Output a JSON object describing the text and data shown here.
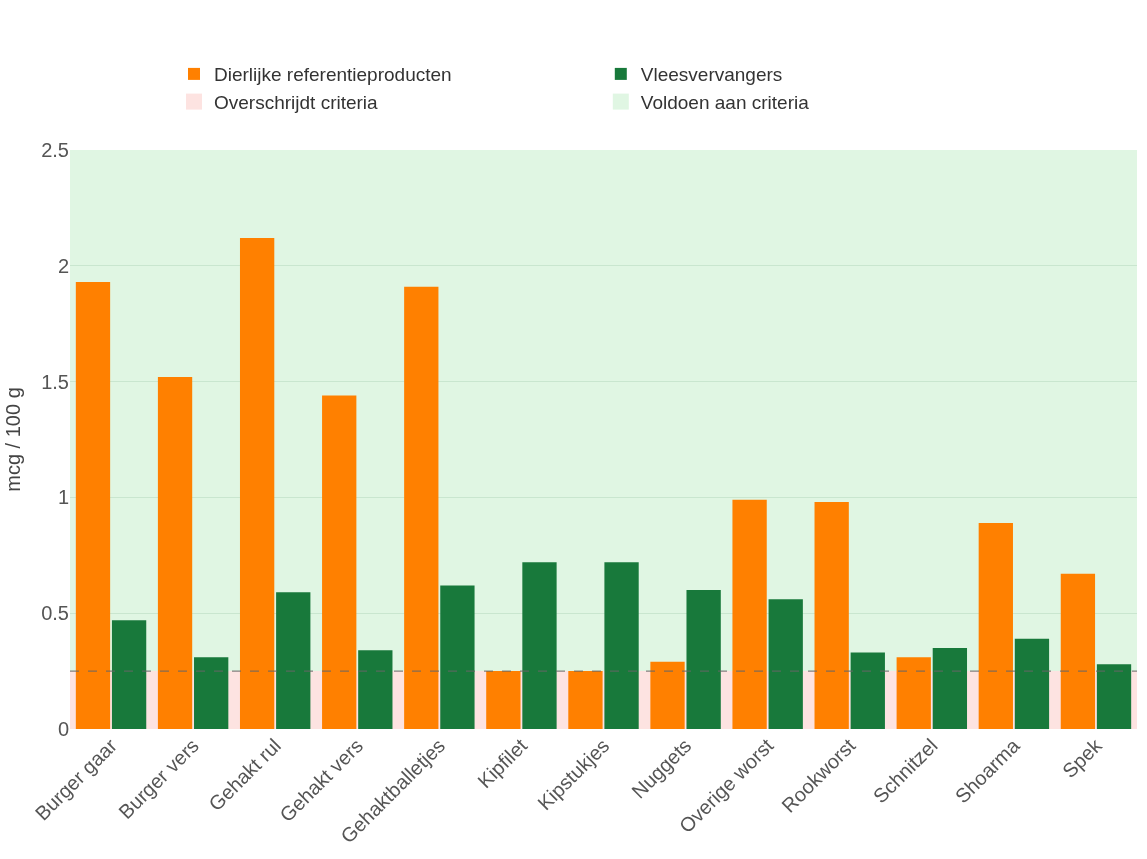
{
  "chart_data": {
    "type": "bar",
    "ylabel": "mcg / 100 g",
    "categories": [
      "Burger gaar",
      "Burger vers",
      "Gehakt rul",
      "Gehakt vers",
      "Gehaktballetjes",
      "Kipfilet",
      "Kipstukjes",
      "Nuggets",
      "Overige worst",
      "Rookworst",
      "Schnitzel",
      "Shoarma",
      "Spek"
    ],
    "series": [
      {
        "name": "Dierlijke referentieproducten",
        "color": "#ff8000",
        "values": [
          1.93,
          1.52,
          2.12,
          1.44,
          1.91,
          0.25,
          0.25,
          0.29,
          0.99,
          0.98,
          0.31,
          0.89,
          0.67
        ]
      },
      {
        "name": "Vleesvervangers",
        "color": "#18793b",
        "values": [
          0.47,
          0.31,
          0.59,
          0.34,
          0.62,
          0.72,
          0.72,
          0.6,
          0.56,
          0.33,
          0.35,
          0.39,
          0.28
        ]
      }
    ],
    "ylim": [
      0,
      2.5
    ],
    "yticks": [
      0,
      0.5,
      1,
      1.5,
      2,
      2.5
    ],
    "grid": "y",
    "legend": "top",
    "bands": [
      {
        "axis": "y",
        "from": 0,
        "to": 0.25,
        "label": "Overschrijdt criteria",
        "color": "#fde3e1"
      },
      {
        "axis": "y",
        "from": 0.25,
        "to": 2.5,
        "label": "Voldoen aan criteria",
        "color": "#e0f6e3"
      }
    ],
    "ref_lines": [
      {
        "axis": "y",
        "value": 0.25,
        "color": "#666666",
        "line_style": "dashed"
      }
    ]
  }
}
